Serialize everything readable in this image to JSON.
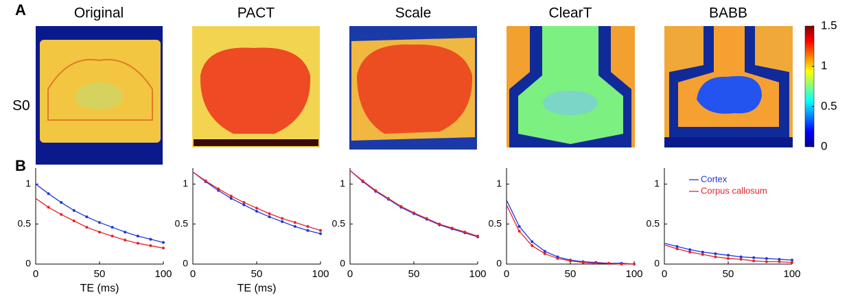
{
  "figure": {
    "panel_a": "A",
    "panel_b": "B",
    "row_label": "S0",
    "titles": [
      "Original",
      "PACT",
      "Scale",
      "ClearT",
      "BABB"
    ],
    "colorbar": {
      "lim": [
        0,
        1.5
      ],
      "ticks": [
        0,
        0.5,
        1,
        1.5
      ]
    }
  },
  "chart_data": [
    {
      "type": "line",
      "xlabel": "TE (ms)",
      "x": [
        0,
        10,
        20,
        30,
        40,
        50,
        60,
        70,
        80,
        90,
        100
      ],
      "xlim": [
        0,
        100
      ],
      "xticks": [
        0,
        50,
        100
      ],
      "ylim": [
        0,
        1.2
      ],
      "yticks": [
        0,
        0.5,
        1
      ],
      "markers": true,
      "series": [
        {
          "name": "Cortex",
          "color": "#1f35e0",
          "values": [
            1,
            0.88,
            0.77,
            0.67,
            0.59,
            0.52,
            0.46,
            0.4,
            0.35,
            0.31,
            0.27
          ]
        },
        {
          "name": "Corpus callosum",
          "color": "#e6212b",
          "values": [
            0.82,
            0.71,
            0.62,
            0.54,
            0.46,
            0.4,
            0.35,
            0.3,
            0.26,
            0.23,
            0.2
          ]
        }
      ]
    },
    {
      "type": "line",
      "xlabel": "TE (ms)",
      "x": [
        0,
        10,
        20,
        30,
        40,
        50,
        60,
        70,
        80,
        90,
        100
      ],
      "xlim": [
        0,
        100
      ],
      "xticks": [
        0,
        50,
        100
      ],
      "ylim": [
        0,
        1.2
      ],
      "yticks": [
        0,
        0.5,
        1
      ],
      "markers": true,
      "series": [
        {
          "name": "Cortex",
          "color": "#1f35e0",
          "values": [
            1.15,
            1.03,
            0.92,
            0.82,
            0.74,
            0.66,
            0.59,
            0.53,
            0.47,
            0.42,
            0.38
          ]
        },
        {
          "name": "Corpus callosum",
          "color": "#e6212b",
          "values": [
            1.15,
            1.04,
            0.94,
            0.85,
            0.77,
            0.7,
            0.63,
            0.57,
            0.52,
            0.47,
            0.42
          ]
        }
      ]
    },
    {
      "type": "line",
      "x": [
        0,
        10,
        20,
        30,
        40,
        50,
        60,
        70,
        80,
        90,
        100
      ],
      "xlim": [
        0,
        100
      ],
      "xticks": [
        0,
        50,
        100
      ],
      "ylim": [
        0,
        1.2
      ],
      "yticks": [
        0,
        0.5,
        1
      ],
      "markers": true,
      "series": [
        {
          "name": "Cortex",
          "color": "#1f35e0",
          "values": [
            1.17,
            1.03,
            0.91,
            0.81,
            0.71,
            0.63,
            0.56,
            0.49,
            0.44,
            0.39,
            0.34
          ]
        },
        {
          "name": "Corpus callosum",
          "color": "#e6212b",
          "values": [
            1.17,
            1.04,
            0.92,
            0.82,
            0.72,
            0.64,
            0.57,
            0.5,
            0.45,
            0.4,
            0.35
          ]
        }
      ]
    },
    {
      "type": "line",
      "x": [
        0,
        10,
        20,
        30,
        40,
        50,
        60,
        70,
        80,
        90,
        100
      ],
      "xlim": [
        0,
        100
      ],
      "xticks": [
        0,
        50,
        100
      ],
      "ylim": [
        0,
        1.2
      ],
      "yticks": [
        0,
        0.5,
        1
      ],
      "markers": true,
      "series": [
        {
          "name": "Cortex",
          "color": "#1f35e0",
          "values": [
            0.8,
            0.47,
            0.28,
            0.16,
            0.09,
            0.05,
            0.03,
            0.02,
            0.01,
            0.01,
            0
          ]
        },
        {
          "name": "Corpus callosum",
          "color": "#e6212b",
          "values": [
            0.74,
            0.41,
            0.23,
            0.13,
            0.07,
            0.04,
            0.02,
            0.01,
            0.01,
            0,
            0
          ]
        }
      ]
    },
    {
      "type": "line",
      "x": [
        0,
        10,
        20,
        30,
        40,
        50,
        60,
        70,
        80,
        90,
        100
      ],
      "xlim": [
        0,
        100
      ],
      "xticks": [
        0,
        50,
        100
      ],
      "ylim": [
        0,
        1.2
      ],
      "yticks": [
        0,
        0.5,
        1
      ],
      "markers": true,
      "legend": "upper right",
      "series": [
        {
          "name": "Cortex",
          "color": "#1f35e0",
          "values": [
            0.26,
            0.22,
            0.18,
            0.15,
            0.13,
            0.11,
            0.09,
            0.08,
            0.07,
            0.06,
            0.05
          ]
        },
        {
          "name": "Corpus callosum",
          "color": "#e6212b",
          "values": [
            0.24,
            0.19,
            0.15,
            0.12,
            0.09,
            0.07,
            0.06,
            0.04,
            0.03,
            0.03,
            0.02
          ]
        }
      ]
    }
  ]
}
